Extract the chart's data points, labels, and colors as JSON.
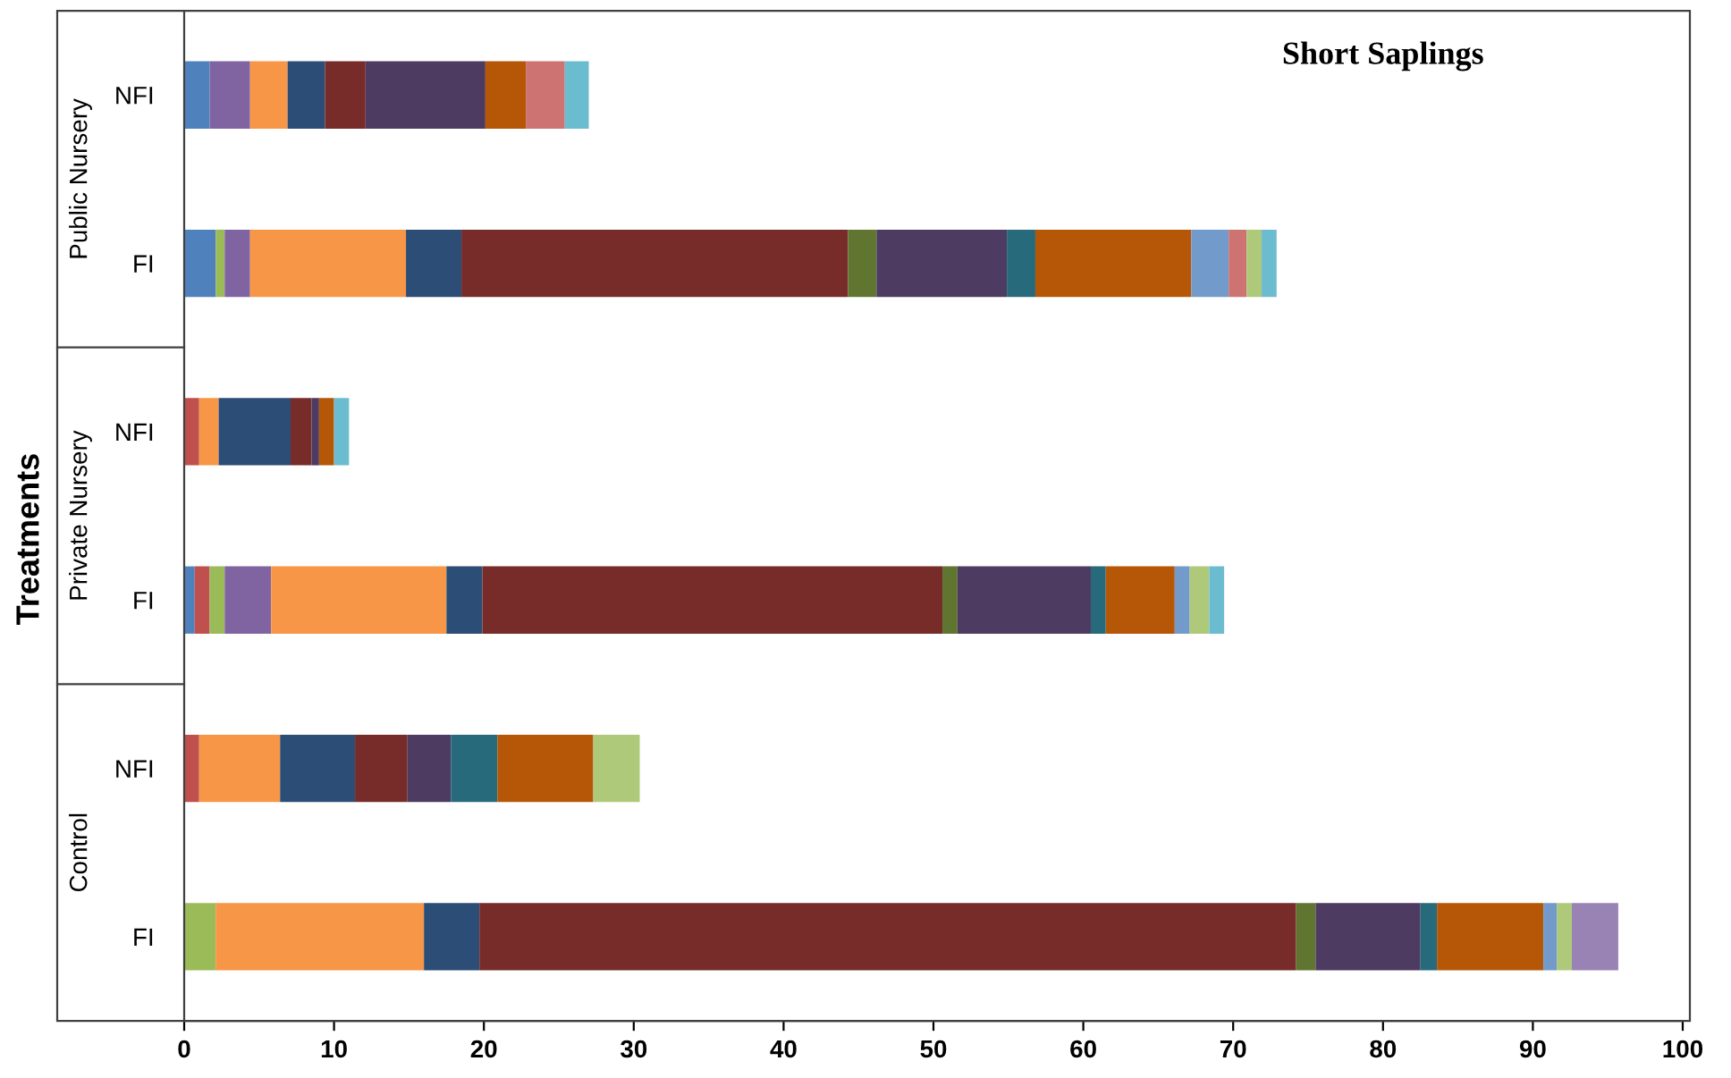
{
  "chart_data": {
    "type": "bar",
    "orientation": "horizontal",
    "stacked": true,
    "title": "Short Saplings",
    "ylabel": "Treatments",
    "categories": [
      "NFI",
      "FI",
      "NFI",
      "FI",
      "NFI",
      "FI"
    ],
    "annotations": [
      "Public Nursery",
      "Private Nursery",
      "Control"
    ],
    "series": [
      {
        "color": "#4f81bd",
        "values": [
          1.7,
          2.1,
          null,
          0.7,
          null,
          null
        ]
      },
      {
        "color": "#c0504d",
        "values": [
          null,
          null,
          1.0,
          1.0,
          1.0,
          null
        ]
      },
      {
        "color": "#9bbb59",
        "values": [
          null,
          0.6,
          null,
          1.0,
          null,
          2.1
        ]
      },
      {
        "color": "#8064a2",
        "values": [
          2.7,
          1.7,
          null,
          3.1,
          null,
          null
        ]
      },
      {
        "color": "#f79646",
        "values": [
          2.5,
          10.4,
          1.3,
          11.7,
          5.4,
          13.9
        ]
      },
      {
        "color": "#2c4d75",
        "values": [
          2.5,
          3.7,
          4.8,
          2.4,
          5.0,
          3.7
        ]
      },
      {
        "color": "#772c2a",
        "values": [
          2.7,
          25.8,
          1.4,
          30.7,
          3.5,
          54.5
        ]
      },
      {
        "color": "#5f7530",
        "values": [
          null,
          1.9,
          null,
          1.0,
          null,
          1.3
        ]
      },
      {
        "color": "#4d3b62",
        "values": [
          8.0,
          8.7,
          0.5,
          8.9,
          2.9,
          7.0
        ]
      },
      {
        "color": "#276a7c",
        "values": [
          null,
          1.9,
          null,
          1.0,
          3.1,
          1.1
        ]
      },
      {
        "color": "#b65708",
        "values": [
          2.7,
          10.4,
          1.0,
          4.6,
          6.4,
          7.1
        ]
      },
      {
        "color": "#729aca",
        "values": [
          null,
          2.5,
          null,
          1.0,
          null,
          0.9
        ]
      },
      {
        "color": "#cd7371",
        "values": [
          2.6,
          1.2,
          null,
          null,
          null,
          null
        ]
      },
      {
        "color": "#afc97a",
        "values": [
          null,
          1.0,
          null,
          1.3,
          3.1,
          1.0
        ]
      },
      {
        "color": "#9983b5",
        "values": [
          null,
          null,
          null,
          null,
          null,
          3.1
        ]
      },
      {
        "color": "#6cbccf",
        "values": [
          1.6,
          1.0,
          1.0,
          1.0,
          null,
          null
        ]
      }
    ],
    "xlim": [
      0,
      100
    ],
    "xticks": [
      0,
      10,
      20,
      30,
      40,
      50,
      60,
      70,
      80,
      90,
      100
    ],
    "grid": false,
    "legend": false
  }
}
